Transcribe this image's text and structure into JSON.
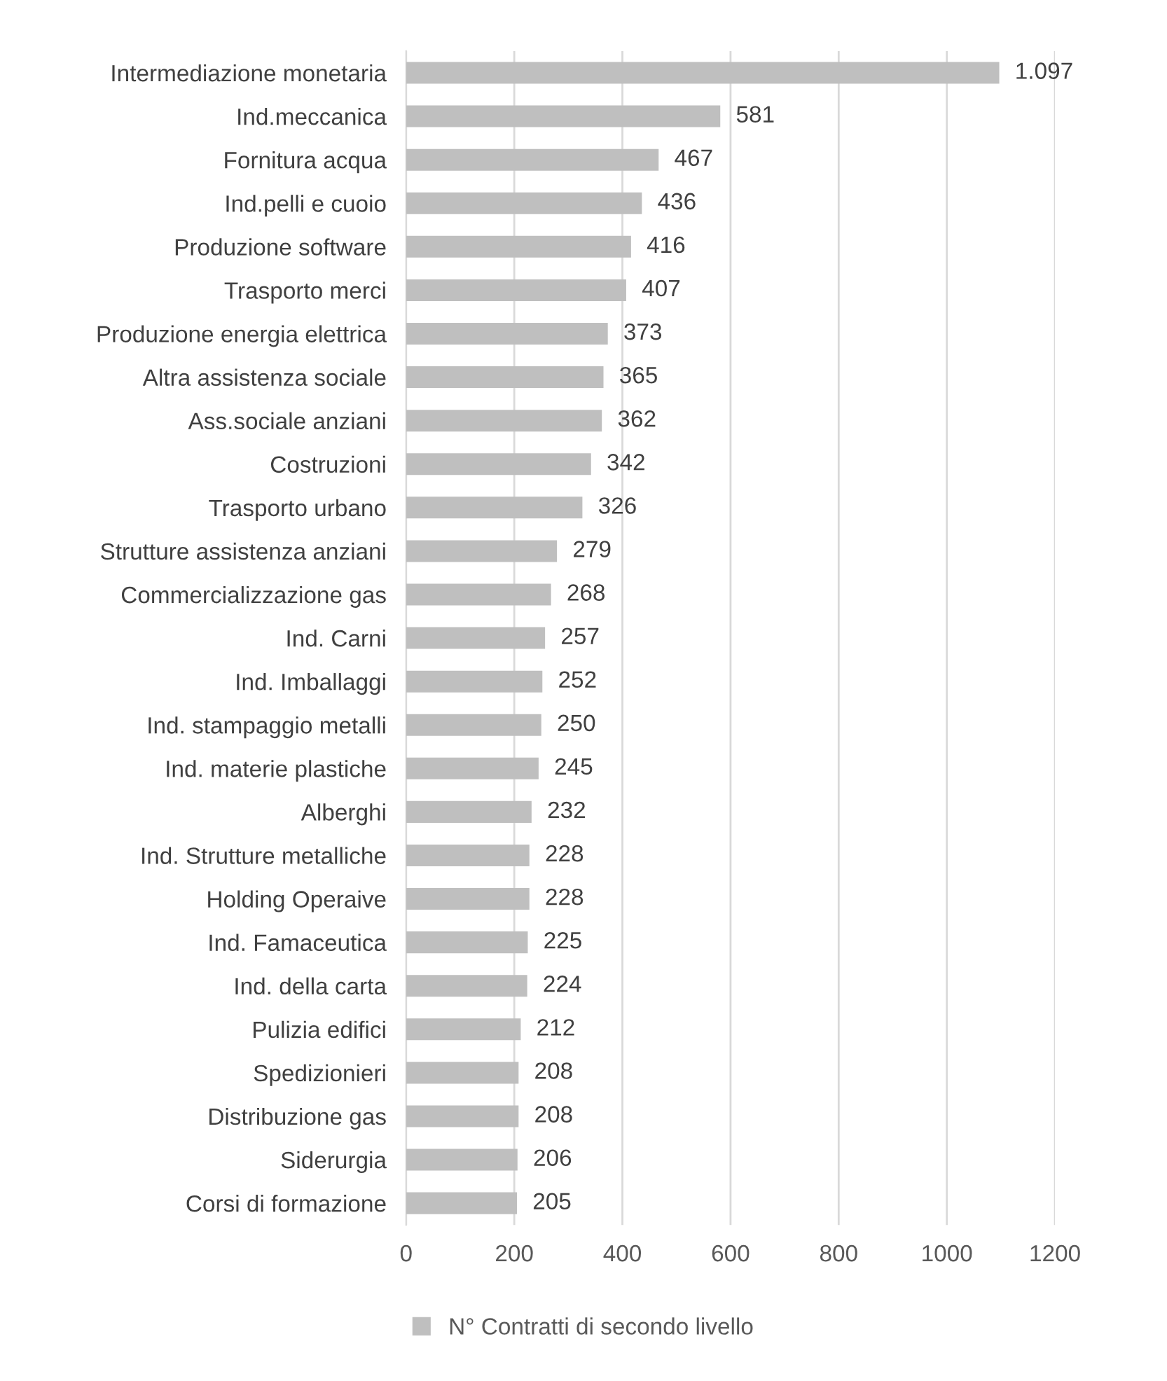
{
  "chart_data": {
    "type": "bar",
    "orientation": "horizontal",
    "categories": [
      "Intermediazione monetaria",
      "Ind.meccanica",
      "Fornitura acqua",
      "Ind.pelli e cuoio",
      "Produzione software",
      "Trasporto merci",
      "Produzione energia elettrica",
      "Altra assistenza sociale",
      "Ass.sociale anziani",
      "Costruzioni",
      "Trasporto urbano",
      "Strutture assistenza anziani",
      "Commercializzazione gas",
      "Ind. Carni",
      "Ind. Imballaggi",
      "Ind. stampaggio metalli",
      "Ind. materie plastiche",
      "Alberghi",
      "Ind. Strutture metalliche",
      "Holding Operaive",
      "Ind. Famaceutica",
      "Ind. della carta",
      "Pulizia edifici",
      "Spedizionieri",
      "Distribuzione gas",
      "Siderurgia",
      "Corsi di formazione"
    ],
    "series": [
      {
        "name": "N° Contratti di secondo livello",
        "color": "#bfbfbf",
        "values": [
          1097,
          581,
          467,
          436,
          416,
          407,
          373,
          365,
          362,
          342,
          326,
          279,
          268,
          257,
          252,
          250,
          245,
          232,
          228,
          228,
          225,
          224,
          212,
          208,
          208,
          206,
          205
        ],
        "value_labels": [
          "1.097",
          "581",
          "467",
          "436",
          "416",
          "407",
          "373",
          "365",
          "362",
          "342",
          "326",
          "279",
          "268",
          "257",
          "252",
          "250",
          "245",
          "232",
          "228",
          "228",
          "225",
          "224",
          "212",
          "208",
          "208",
          "206",
          "205"
        ]
      }
    ],
    "xlim": [
      0,
      1200
    ],
    "xticks": [
      0,
      200,
      400,
      600,
      800,
      1000,
      1200
    ],
    "grid": "x",
    "legend": "bottom"
  }
}
